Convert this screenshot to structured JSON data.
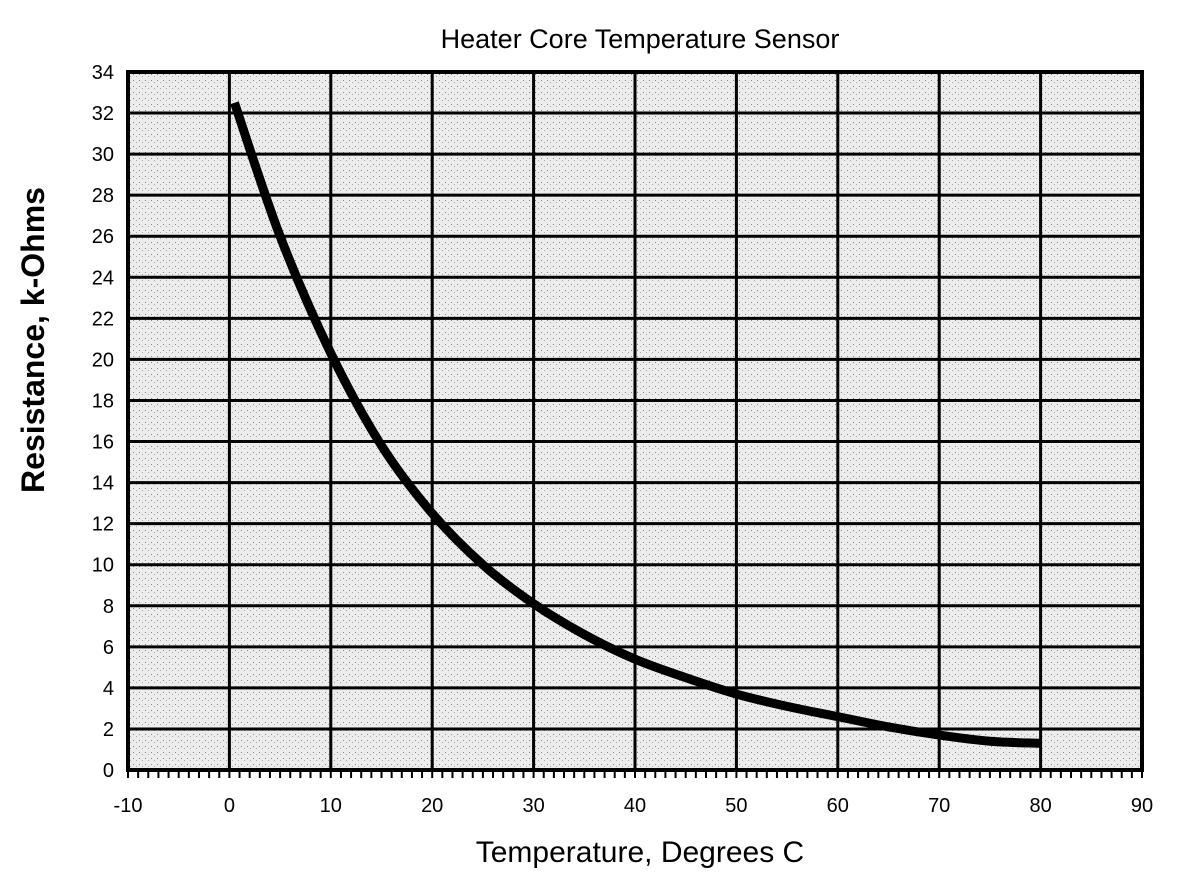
{
  "chart_data": {
    "type": "line",
    "title": "Heater Core Temperature Sensor",
    "xlabel": "Temperature, Degrees C",
    "ylabel": "Resistance, k-Ohms",
    "xlim": [
      -10,
      90
    ],
    "ylim": [
      0,
      34
    ],
    "xticks": [
      -10,
      0,
      10,
      20,
      30,
      40,
      50,
      60,
      70,
      80,
      90
    ],
    "yticks": [
      0,
      2,
      4,
      6,
      8,
      10,
      12,
      14,
      16,
      18,
      20,
      22,
      24,
      26,
      28,
      30,
      32,
      34
    ],
    "grid": true,
    "series": [
      {
        "name": "Resistance",
        "x": [
          0.5,
          5,
          10,
          15,
          20,
          25,
          30,
          35,
          40,
          45,
          50,
          55,
          60,
          65,
          70,
          75,
          80
        ],
        "y": [
          32.5,
          26,
          20.3,
          15.8,
          12.5,
          10,
          8.1,
          6.6,
          5.4,
          4.5,
          3.7,
          3.1,
          2.6,
          2.1,
          1.7,
          1.4,
          1.3
        ]
      }
    ]
  }
}
